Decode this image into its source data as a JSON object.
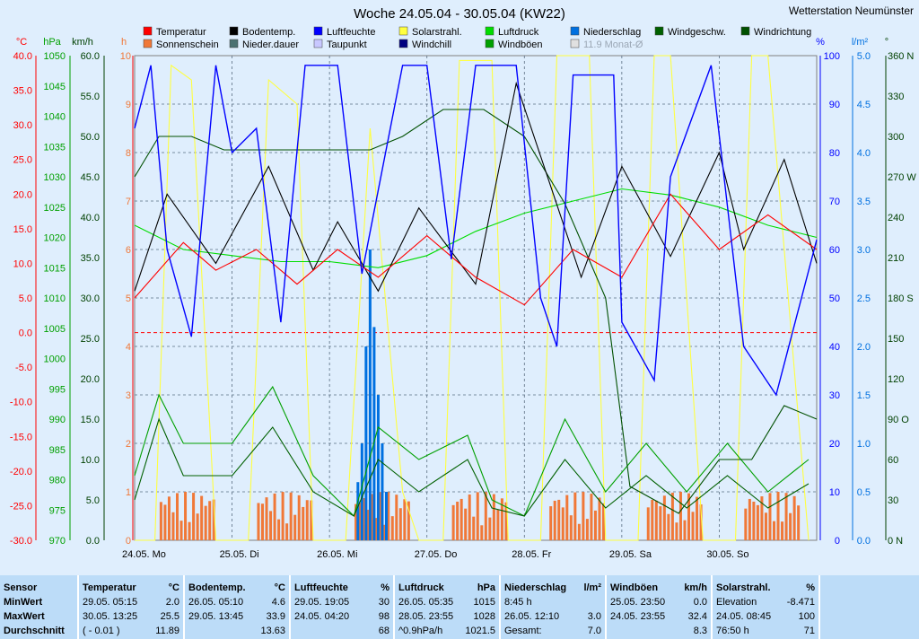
{
  "title": "Woche 24.05.04 - 30.05.04 (KW22)",
  "station": "Wetterstation Neumünster",
  "colors": {
    "temp": "#ff0000",
    "sun": "#f07838",
    "boden": "#000000",
    "nieder_dauer": "#4c7272",
    "feuchte": "#0000ff",
    "taupunkt": "#c8c8ff",
    "solar": "#ffff40",
    "windchill": "#000080",
    "druck": "#00dd00",
    "boeen": "#00a000",
    "niederschlag": "#0070e0",
    "windgeschw": "#006000",
    "richtung": "#005000",
    "monat": "#e0e0e0",
    "zero": "#ff0000"
  },
  "legend": [
    {
      "label": "Temperatur",
      "key": "temp"
    },
    {
      "label": "Bodentemp.",
      "key": "boden"
    },
    {
      "label": "Luftfeuchte",
      "key": "feuchte"
    },
    {
      "label": "Solarstrahl.",
      "key": "solar"
    },
    {
      "label": "Luftdruck",
      "key": "druck"
    },
    {
      "label": "Niederschlag",
      "key": "niederschlag"
    },
    {
      "label": "Windgeschw.",
      "key": "windgeschw"
    },
    {
      "label": "Windrichtung",
      "key": "richtung"
    },
    {
      "label": "Sonnenschein",
      "key": "sun"
    },
    {
      "label": "Nieder.dauer",
      "key": "nieder_dauer"
    },
    {
      "label": "Taupunkt",
      "key": "taupunkt"
    },
    {
      "label": "Windchill",
      "key": "windchill"
    },
    {
      "label": "Windböen",
      "key": "boeen"
    },
    {
      "label": "11.9 Monat-Ø",
      "key": "monat"
    }
  ],
  "chart_data": {
    "type": "line",
    "x_days": [
      "24.05.  Mo",
      "25.05.  Di",
      "26.05.  Mi",
      "27.05.  Do",
      "28.05.  Fr",
      "29.05.  Sa",
      "30.05.  So"
    ],
    "axes": {
      "temperature_c": {
        "unit": "°C",
        "range": [
          -30,
          40
        ],
        "ticks": [
          "40.0",
          "35.0",
          "30.0",
          "25.0",
          "20.0",
          "15.0",
          "10.0",
          "5.0",
          "0.0",
          "-5.0",
          "-10.0",
          "-15.0",
          "-20.0",
          "-25.0",
          "-30.0"
        ]
      },
      "pressure_hpa": {
        "unit": "hPa",
        "range": [
          970,
          1050
        ],
        "ticks": [
          "1050",
          "1045",
          "1040",
          "1035",
          "1030",
          "1025",
          "1020",
          "1015",
          "1010",
          "1005",
          "1000",
          "995",
          "990",
          "985",
          "980",
          "975",
          "970"
        ]
      },
      "wind_kmh": {
        "unit": "km/h",
        "range": [
          0,
          60
        ],
        "ticks": [
          "60.0",
          "55.0",
          "50.0",
          "45.0",
          "40.0",
          "35.0",
          "30.0",
          "25.0",
          "20.0",
          "15.0",
          "10.0",
          "5.0",
          "0.0"
        ]
      },
      "sun_h": {
        "unit": "h",
        "range": [
          0,
          10
        ],
        "ticks": [
          "10",
          "9",
          "8",
          "7",
          "6",
          "5",
          "4",
          "3",
          "2",
          "1",
          "0"
        ]
      },
      "humidity_pct": {
        "unit": "%",
        "range": [
          0,
          100
        ],
        "ticks": [
          "100",
          "90",
          "80",
          "70",
          "60",
          "50",
          "40",
          "30",
          "20",
          "10",
          "0"
        ]
      },
      "rain_lm2": {
        "unit": "l/m²",
        "range": [
          0,
          5
        ],
        "ticks": [
          "5.0",
          "4.5",
          "4.0",
          "3.5",
          "3.0",
          "2.5",
          "2.0",
          "1.5",
          "1.0",
          "0.5",
          "0.0"
        ]
      },
      "direction_deg": {
        "unit": "°",
        "range": [
          0,
          360
        ],
        "ticks": [
          "360 N",
          "330",
          "300",
          "270 W",
          "240",
          "210",
          "180 S",
          "150",
          "120",
          "90 O",
          "60",
          "30",
          "0 N"
        ]
      }
    },
    "series": [
      {
        "name": "Temperatur",
        "axis": "temperature_c",
        "key": "temp",
        "values": [
          [
            0,
            5
          ],
          [
            12,
            13
          ],
          [
            20,
            9
          ],
          [
            30,
            12
          ],
          [
            40,
            7
          ],
          [
            50,
            12
          ],
          [
            60,
            8
          ],
          [
            72,
            14
          ],
          [
            84,
            8
          ],
          [
            96,
            4
          ],
          [
            108,
            12
          ],
          [
            120,
            8
          ],
          [
            132,
            20
          ],
          [
            144,
            12
          ],
          [
            156,
            17
          ],
          [
            168,
            12
          ]
        ]
      },
      {
        "name": "Bodentemp.",
        "axis": "boden",
        "key": "boden",
        "values": [
          [
            0,
            6
          ],
          [
            8,
            20
          ],
          [
            20,
            10
          ],
          [
            33,
            24
          ],
          [
            44,
            9
          ],
          [
            50,
            16
          ],
          [
            60,
            6
          ],
          [
            70,
            18
          ],
          [
            84,
            7
          ],
          [
            94,
            36
          ],
          [
            110,
            8
          ],
          [
            120,
            24
          ],
          [
            132,
            11
          ],
          [
            144,
            26
          ],
          [
            150,
            12
          ],
          [
            160,
            25
          ],
          [
            168,
            10
          ]
        ]
      },
      {
        "name": "Luftfeuchte",
        "axis": "humidity_pct",
        "key": "feuchte",
        "values": [
          [
            0,
            85
          ],
          [
            4,
            98
          ],
          [
            8,
            60
          ],
          [
            14,
            42
          ],
          [
            20,
            98
          ],
          [
            24,
            80
          ],
          [
            30,
            85
          ],
          [
            36,
            45
          ],
          [
            42,
            98
          ],
          [
            50,
            98
          ],
          [
            56,
            55
          ],
          [
            66,
            98
          ],
          [
            72,
            98
          ],
          [
            78,
            58
          ],
          [
            84,
            98
          ],
          [
            94,
            98
          ],
          [
            100,
            50
          ],
          [
            104,
            40
          ],
          [
            108,
            96
          ],
          [
            118,
            96
          ],
          [
            120,
            45
          ],
          [
            128,
            33
          ],
          [
            132,
            75
          ],
          [
            142,
            98
          ],
          [
            150,
            40
          ],
          [
            158,
            30
          ],
          [
            168,
            62
          ]
        ]
      },
      {
        "name": "Solarstrahl.",
        "axis": "humidity_pct",
        "key": "solar",
        "values": [
          [
            0,
            0
          ],
          [
            5,
            0
          ],
          [
            9,
            98
          ],
          [
            14,
            95
          ],
          [
            20,
            0
          ],
          [
            28,
            0
          ],
          [
            33,
            95
          ],
          [
            40,
            90
          ],
          [
            44,
            0
          ],
          [
            52,
            0
          ],
          [
            58,
            85
          ],
          [
            66,
            10
          ],
          [
            70,
            0
          ],
          [
            76,
            0
          ],
          [
            80,
            99
          ],
          [
            88,
            99
          ],
          [
            92,
            0
          ],
          [
            100,
            0
          ],
          [
            104,
            100
          ],
          [
            112,
            100
          ],
          [
            116,
            0
          ],
          [
            124,
            0
          ],
          [
            128,
            100
          ],
          [
            132,
            100
          ],
          [
            140,
            0
          ],
          [
            148,
            0
          ],
          [
            152,
            100
          ],
          [
            156,
            100
          ],
          [
            166,
            0
          ]
        ]
      },
      {
        "name": "Luftdruck",
        "axis": "pressure_hpa",
        "key": "druck",
        "values": [
          [
            0,
            1022
          ],
          [
            12,
            1018
          ],
          [
            24,
            1017
          ],
          [
            36,
            1016
          ],
          [
            48,
            1016
          ],
          [
            60,
            1015
          ],
          [
            72,
            1017
          ],
          [
            84,
            1021
          ],
          [
            96,
            1024
          ],
          [
            108,
            1026
          ],
          [
            120,
            1028
          ],
          [
            132,
            1027
          ],
          [
            144,
            1025
          ],
          [
            156,
            1022
          ],
          [
            168,
            1020
          ]
        ]
      },
      {
        "name": "Windgeschw.",
        "axis": "wind_kmh",
        "key": "windgeschw",
        "values": [
          [
            0,
            5
          ],
          [
            6,
            15
          ],
          [
            12,
            8
          ],
          [
            24,
            8
          ],
          [
            34,
            14
          ],
          [
            44,
            6
          ],
          [
            54,
            3
          ],
          [
            60,
            10
          ],
          [
            70,
            6
          ],
          [
            82,
            10
          ],
          [
            88,
            4
          ],
          [
            96,
            3
          ],
          [
            106,
            10
          ],
          [
            116,
            4
          ],
          [
            126,
            8
          ],
          [
            136,
            4
          ],
          [
            146,
            8
          ],
          [
            156,
            4
          ],
          [
            166,
            7
          ]
        ]
      },
      {
        "name": "Windböen",
        "axis": "wind_kmh",
        "key": "boeen",
        "values": [
          [
            0,
            8
          ],
          [
            6,
            18
          ],
          [
            12,
            12
          ],
          [
            24,
            12
          ],
          [
            34,
            19
          ],
          [
            44,
            8
          ],
          [
            54,
            3
          ],
          [
            60,
            14
          ],
          [
            70,
            10
          ],
          [
            82,
            13
          ],
          [
            88,
            5
          ],
          [
            96,
            3
          ],
          [
            106,
            15
          ],
          [
            116,
            6
          ],
          [
            126,
            12
          ],
          [
            136,
            6
          ],
          [
            146,
            12
          ],
          [
            156,
            6
          ],
          [
            166,
            10
          ]
        ]
      },
      {
        "name": "Windrichtung",
        "axis": "direction_deg",
        "key": "richtung",
        "values": [
          [
            0,
            270
          ],
          [
            6,
            300
          ],
          [
            14,
            300
          ],
          [
            22,
            290
          ],
          [
            34,
            290
          ],
          [
            48,
            290
          ],
          [
            58,
            290
          ],
          [
            66,
            300
          ],
          [
            76,
            320
          ],
          [
            86,
            320
          ],
          [
            96,
            300
          ],
          [
            106,
            250
          ],
          [
            116,
            180
          ],
          [
            122,
            40
          ],
          [
            134,
            20
          ],
          [
            144,
            60
          ],
          [
            152,
            60
          ],
          [
            160,
            100
          ],
          [
            168,
            90
          ]
        ]
      }
    ],
    "zero_line": 0
  },
  "stats": [
    {
      "header": "Sensor",
      "unit": "",
      "rows": [
        "MinWert",
        "MaxWert",
        "Durchschnitt"
      ],
      "times": [],
      "values": []
    },
    {
      "header": "Temperatur",
      "unit": "°C",
      "times": [
        "29.05.  05:15",
        "30.05.  13:25",
        "( - 0.01 )"
      ],
      "values": [
        "2.0",
        "25.5",
        "11.89"
      ]
    },
    {
      "header": "Bodentemp.",
      "unit": "°C",
      "times": [
        "26.05.  05:10",
        "29.05.  13:45",
        ""
      ],
      "values": [
        "4.6",
        "33.9",
        "13.63"
      ]
    },
    {
      "header": "Luftfeuchte",
      "unit": "%",
      "times": [
        "29.05.  19:05",
        "24.05.  04:20",
        ""
      ],
      "values": [
        "30",
        "98",
        "68"
      ]
    },
    {
      "header": "Luftdruck",
      "unit": "hPa",
      "times": [
        "26.05.  05:35",
        "28.05.  23:55",
        "^0.9hPa/h"
      ],
      "values": [
        "1015",
        "1028",
        "1021.5"
      ]
    },
    {
      "header": "Niederschlag",
      "unit": "l/m²",
      "times": [
        "8:45 h",
        "26.05.  12:10",
        "Gesamt:"
      ],
      "values": [
        "",
        "3.0",
        "7.0"
      ]
    },
    {
      "header": "Windböen",
      "unit": "km/h",
      "times": [
        "25.05.  23:50",
        "24.05.  23:55",
        ""
      ],
      "values": [
        "0.0",
        "32.4",
        "8.3"
      ]
    },
    {
      "header": "Solarstrahl.",
      "unit": "%",
      "times": [
        "Elevation",
        "24.05.  08:45",
        "76:50 h"
      ],
      "values": [
        "-8.471",
        "100",
        "71"
      ]
    }
  ]
}
